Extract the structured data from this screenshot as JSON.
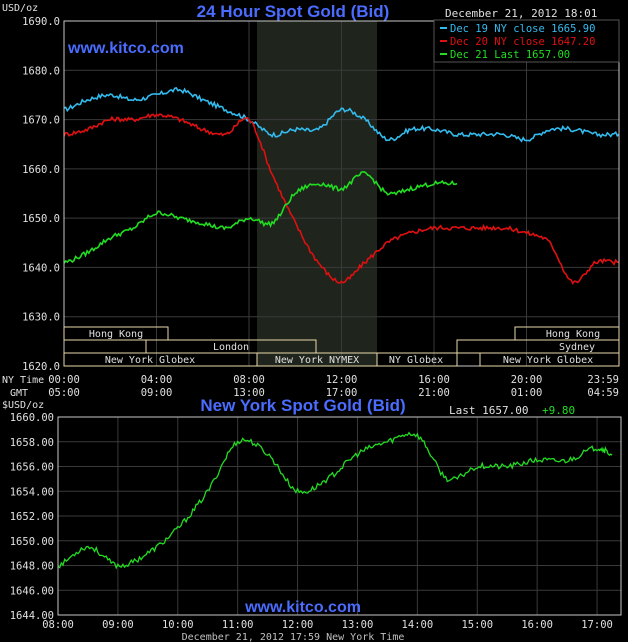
{
  "colors": {
    "bg": "#000000",
    "grid": "#3a3a3a",
    "axis": "#c8c8c8",
    "title": "#4a6cff",
    "session_band": "#1f241c",
    "label_box": "#e8d9a8",
    "series_cyan": "#33bbee",
    "series_red": "#e01010",
    "series_green": "#22dd22"
  },
  "top_chart": {
    "title": "24 Hour Spot Gold (Bid)",
    "watermark": "www.kitco.com",
    "datetime": "December 21, 2012 18:01",
    "y_unit": "USD/oz",
    "legend": [
      {
        "label": "Dec 19 NY close 1665.90",
        "color": "#33bbee"
      },
      {
        "label": "Dec 20 NY close 1647.20",
        "color": "#e01010"
      },
      {
        "label": "Dec 21 Last 1657.00",
        "color": "#22dd22"
      }
    ],
    "row_label_ny": "NY Time",
    "row_label_gmt": "GMT",
    "sessions": [
      "Hong Kong",
      "London",
      "New York Globex",
      "New York NYMEX",
      "NY Globex",
      "Sydney",
      "Hong Kong",
      "New York Globex"
    ]
  },
  "bottom_chart": {
    "title": "New York Spot Gold (Bid)",
    "y_unit": "$USD/oz",
    "last_label": "Last 1657.00",
    "change": "+9.80",
    "watermark": "www.kitco.com",
    "footer": "December 21, 2012 17:59 New York Time"
  },
  "chart_data": [
    {
      "type": "line",
      "title": "24 Hour Spot Gold (Bid)",
      "ylabel": "USD/oz",
      "ylim": [
        1620,
        1690
      ],
      "yticks": [
        "1620.0",
        "1630.0",
        "1640.0",
        "1650.0",
        "1660.0",
        "1670.0",
        "1680.0",
        "1690.0"
      ],
      "xticks_ny": [
        "00:00",
        "04:00",
        "08:00",
        "12:00",
        "16:00",
        "20:00",
        "23:59"
      ],
      "xticks_gmt": [
        "05:00",
        "09:00",
        "13:00",
        "17:00",
        "21:00",
        "01:00",
        "04:59"
      ],
      "grid": true,
      "legend_position": "top-right",
      "x_hours": [
        0,
        1,
        2,
        3,
        4,
        5,
        6,
        7,
        8,
        9,
        10,
        11,
        12,
        13,
        14,
        15,
        16,
        17,
        18,
        19,
        20,
        21,
        22,
        23,
        24
      ],
      "series": [
        {
          "name": "Dec 19 NY close 1665.90",
          "color": "#33bbee",
          "values": [
            1672,
            1674,
            1675,
            1674,
            1675,
            1676,
            1674,
            1672,
            1670,
            1667,
            1668,
            1668,
            1672,
            1670,
            1666,
            1668,
            1668,
            1667,
            1667,
            1667,
            1666,
            1668,
            1668,
            1667,
            1667
          ]
        },
        {
          "name": "Dec 20 NY close 1647.20",
          "color": "#e01010",
          "values": [
            1667,
            1668,
            1670,
            1670,
            1671,
            1670,
            1668,
            1667,
            1670,
            1659,
            1649,
            1641,
            1637,
            1641,
            1645,
            1647,
            1648,
            1648,
            1648,
            1648,
            1647,
            1645,
            1637,
            1641,
            1641
          ]
        },
        {
          "name": "Dec 21 Last 1657.00",
          "color": "#22dd22",
          "values": [
            1641,
            1643,
            1646,
            1648,
            1651,
            1650,
            1649,
            1648,
            1650,
            1649,
            1655,
            1657,
            1656,
            1659,
            1655,
            1656,
            1657,
            1657,
            null,
            null,
            null,
            null,
            null,
            null,
            null
          ]
        }
      ]
    },
    {
      "type": "line",
      "title": "New York Spot Gold (Bid)",
      "ylabel": "$USD/oz",
      "ylim": [
        1644,
        1660
      ],
      "yticks": [
        "1644.00",
        "1646.00",
        "1648.00",
        "1650.00",
        "1652.00",
        "1654.00",
        "1656.00",
        "1658.00",
        "1660.00"
      ],
      "xticks": [
        "08:00",
        "09:00",
        "10:00",
        "11:00",
        "12:00",
        "13:00",
        "14:00",
        "15:00",
        "16:00",
        "17:00"
      ],
      "grid": true,
      "x_hours": [
        8,
        8.5,
        9,
        9.5,
        10,
        10.5,
        11,
        11.5,
        12,
        12.5,
        13,
        13.5,
        14,
        14.5,
        15,
        15.5,
        16,
        16.5,
        17,
        17.25
      ],
      "series": [
        {
          "name": "Spot Gold",
          "color": "#22dd22",
          "values": [
            1648,
            1649.5,
            1648,
            1649,
            1651,
            1654,
            1658,
            1657,
            1654,
            1655,
            1657,
            1658,
            1658.5,
            1655,
            1656,
            1656,
            1656.5,
            1656.5,
            1657.5,
            1657
          ]
        }
      ]
    }
  ]
}
